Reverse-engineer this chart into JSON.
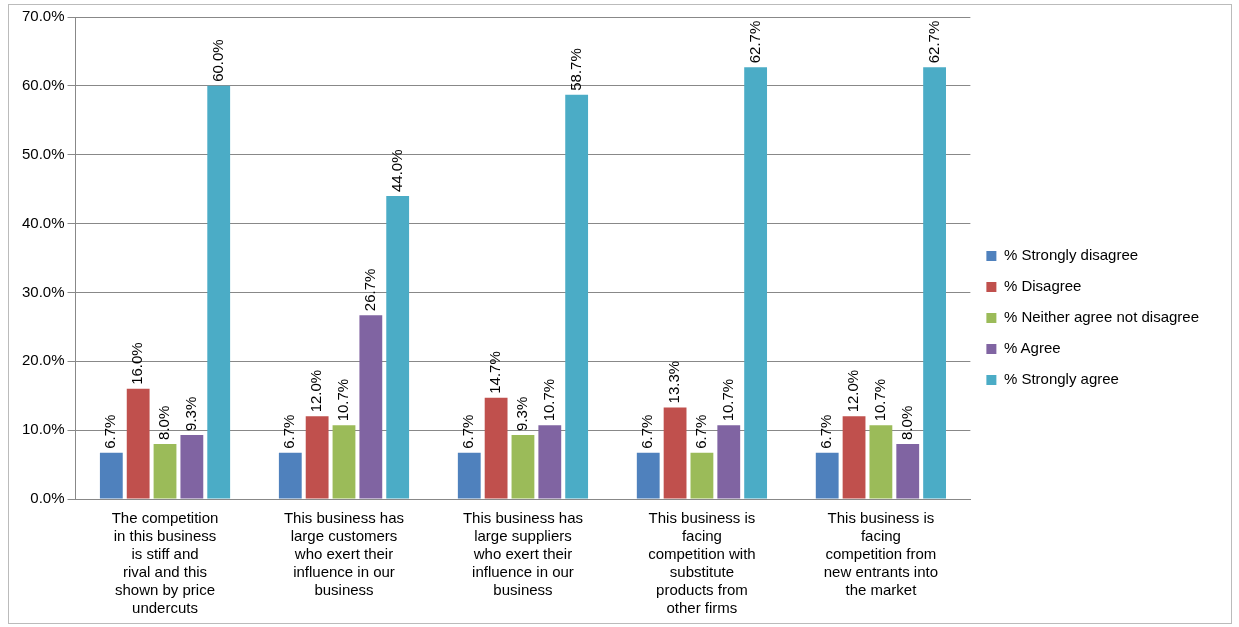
{
  "chart_data": {
    "type": "bar",
    "categories": [
      "The competition in this business is stiff  and rival and this shown by price undercuts",
      "This business has large customers who exert their influence in our business",
      "This business has large suppliers who exert their influence in our business",
      "This business is facing competition with substitute products from other  firms",
      "This business is facing competition from new entrants into the market"
    ],
    "series": [
      {
        "name": "% Strongly disagree",
        "color": "#4f81bd",
        "values": [
          6.7,
          6.7,
          6.7,
          6.7,
          6.7
        ],
        "value_labels": [
          "6.7%",
          "6.7%",
          "6.7%",
          "6.7%",
          "6.7%"
        ]
      },
      {
        "name": "% Disagree",
        "color": "#c0504d",
        "values": [
          16.0,
          12.0,
          14.7,
          13.3,
          12.0
        ],
        "value_labels": [
          "16.0%",
          "12.0%",
          "14.7%",
          "13.3%",
          "12.0%"
        ]
      },
      {
        "name": "% Neither agree not disagree",
        "color": "#9bbb59",
        "values": [
          8.0,
          10.7,
          9.3,
          6.7,
          10.7
        ],
        "value_labels": [
          "8.0%",
          "10.7%",
          "9.3%",
          "6.7%",
          "10.7%"
        ]
      },
      {
        "name": "% Agree",
        "color": "#8064a2",
        "values": [
          9.3,
          26.7,
          10.7,
          10.7,
          8.0
        ],
        "value_labels": [
          "9.3%",
          "26.7%",
          "10.7%",
          "10.7%",
          "8.0%"
        ]
      },
      {
        "name": "% Strongly agree",
        "color": "#4bacc6",
        "values": [
          60.0,
          44.0,
          58.7,
          62.7,
          62.7
        ],
        "value_labels": [
          "60.0%",
          "44.0%",
          "58.7%",
          "62.7%",
          "62.7%"
        ]
      }
    ],
    "ylim": [
      0,
      70
    ],
    "yticks": [
      {
        "value": 0,
        "label": "0.0%"
      },
      {
        "value": 10,
        "label": "10.0%"
      },
      {
        "value": 20,
        "label": "20.0%"
      },
      {
        "value": 30,
        "label": "30.0%"
      },
      {
        "value": 40,
        "label": "40.0%"
      },
      {
        "value": 50,
        "label": "50.0%"
      },
      {
        "value": 60,
        "label": "60.0%"
      },
      {
        "value": 70,
        "label": "70.0%"
      }
    ],
    "grid": "y",
    "legend": "right"
  }
}
